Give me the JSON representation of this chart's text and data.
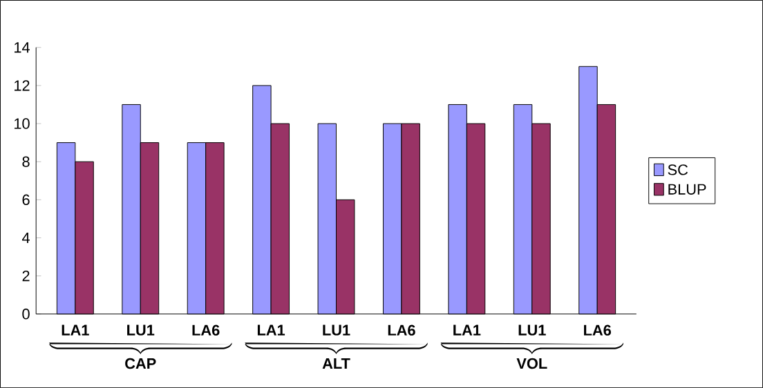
{
  "chart_data": {
    "type": "bar",
    "categories": [
      "LA1",
      "LU1",
      "LA6",
      "LA1",
      "LU1",
      "LA6",
      "LA1",
      "LU1",
      "LA6"
    ],
    "series": [
      {
        "name": "SC",
        "color": "#9999ff",
        "values": [
          9,
          11,
          9,
          12,
          10,
          10,
          11,
          11,
          13
        ]
      },
      {
        "name": "BLUP",
        "color": "#993366",
        "values": [
          8,
          9,
          9,
          10,
          6,
          10,
          10,
          10,
          11
        ]
      }
    ],
    "ylim": [
      0,
      14
    ],
    "yticks": [
      0,
      2,
      4,
      6,
      8,
      10,
      12,
      14
    ],
    "legend": "right",
    "annotations": [
      "CAP",
      "ALT",
      "VOL"
    ]
  }
}
